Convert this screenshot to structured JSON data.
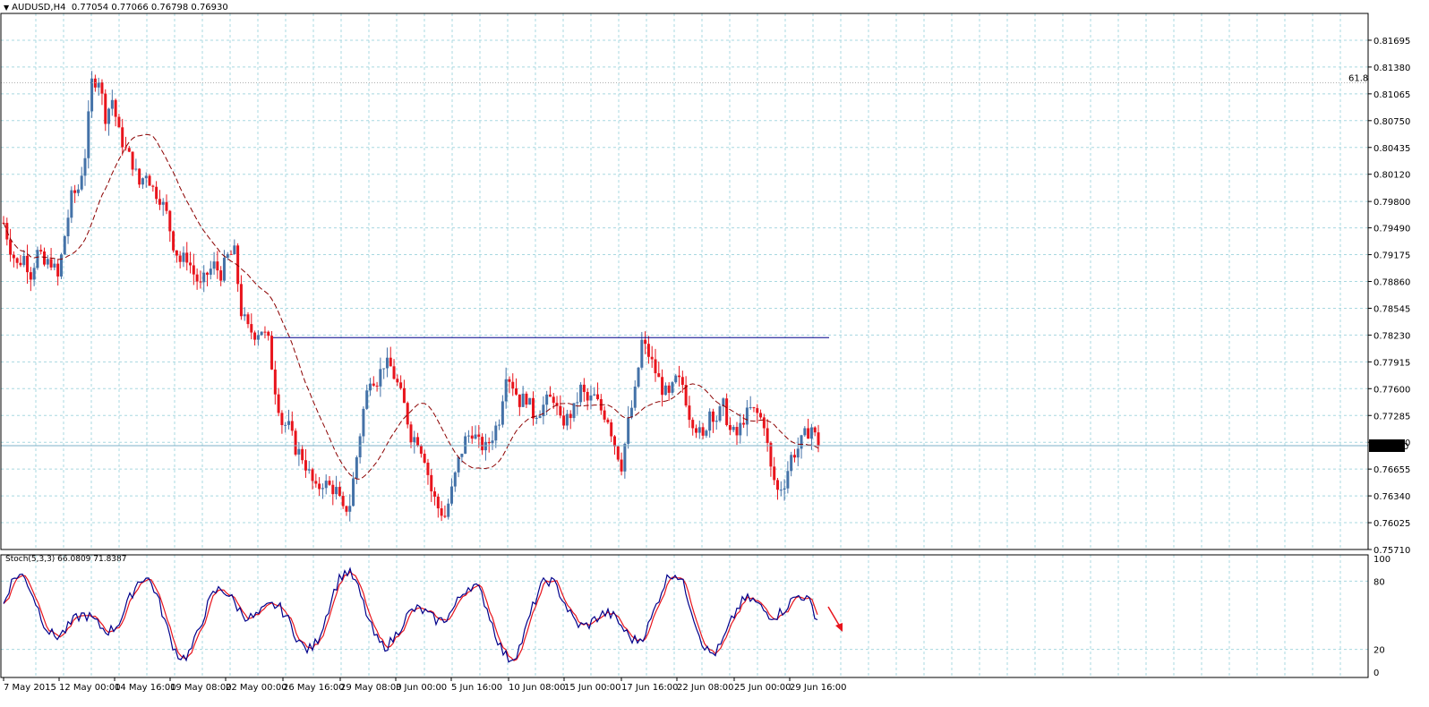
{
  "header": {
    "symbol": "AUDUSD,H4",
    "ohlc": "0.77054 0.77066 0.76798 0.76930"
  },
  "stoch_header": "Stoch(5,3,3) 66.0809 71.8387",
  "fib_label": "61.8",
  "current_price_label": "0.76930",
  "colors": {
    "bull": "#4472a8",
    "bear": "#e8141c",
    "ma": "#8b0000",
    "grid": "#a8d8e0",
    "stoch_main": "#00008b",
    "stoch_signal": "#e8141c",
    "resistance": "#00008b",
    "arrow": "#e8141c"
  },
  "chart_data": [
    {
      "type": "candlestick",
      "title": "",
      "ylim": [
        0.7571,
        0.8201
      ],
      "price_ticks": [
        "0.81695",
        "0.81380",
        "0.81065",
        "0.80750",
        "0.80435",
        "0.80120",
        "0.79800",
        "0.79490",
        "0.79175",
        "0.78860",
        "0.78545",
        "0.78230",
        "0.77915",
        "0.77600",
        "0.77285",
        "0.76970",
        "0.76655",
        "0.76340",
        "0.76025",
        "0.75710"
      ],
      "time_labels": [
        "7 May 2015",
        "12 May 00:00",
        "14 May 16:00",
        "19 May 08:00",
        "22 May 00:00",
        "26 May 16:00",
        "29 May 08:00",
        "3 Jun 00:00",
        "5 Jun 16:00",
        "10 Jun 08:00",
        "15 Jun 00:00",
        "17 Jun 16:00",
        "22 Jun 08:00",
        "25 Jun 00:00",
        "29 Jun 16:00"
      ],
      "close_path": [
        0.7955,
        0.7925,
        0.7905,
        0.7915,
        0.7895,
        0.792,
        0.7905,
        0.791,
        0.789,
        0.794,
        0.7985,
        0.7995,
        0.8035,
        0.812,
        0.8125,
        0.808,
        0.81,
        0.806,
        0.804,
        0.8025,
        0.8,
        0.8015,
        0.7995,
        0.7985,
        0.7965,
        0.793,
        0.791,
        0.7915,
        0.7895,
        0.788,
        0.7895,
        0.7905,
        0.7895,
        0.7915,
        0.792,
        0.785,
        0.783,
        0.7825,
        0.783,
        0.7815,
        0.776,
        0.772,
        0.7715,
        0.769,
        0.768,
        0.766,
        0.764,
        0.765,
        0.7645,
        0.764,
        0.7615,
        0.7625,
        0.768,
        0.7735,
        0.7775,
        0.777,
        0.779,
        0.7785,
        0.7765,
        0.774,
        0.7705,
        0.77,
        0.768,
        0.764,
        0.762,
        0.761,
        0.764,
        0.7675,
        0.77,
        0.771,
        0.7695,
        0.769,
        0.7705,
        0.7725,
        0.778,
        0.7765,
        0.7745,
        0.775,
        0.773,
        0.7735,
        0.7745,
        0.775,
        0.772,
        0.7725,
        0.7735,
        0.776,
        0.7745,
        0.775,
        0.7735,
        0.7725,
        0.7695,
        0.767,
        0.772,
        0.7755,
        0.7815,
        0.78,
        0.778,
        0.776,
        0.775,
        0.777,
        0.7765,
        0.773,
        0.7715,
        0.77,
        0.7735,
        0.7725,
        0.774,
        0.771,
        0.7705,
        0.7725,
        0.7735,
        0.773,
        0.772,
        0.7665,
        0.764,
        0.765,
        0.768,
        0.769,
        0.7705,
        0.7715,
        0.7693
      ],
      "resistance": 0.782,
      "fib_61_8": 0.81195,
      "current_price": 0.7693
    },
    {
      "type": "line",
      "title": "",
      "ylim": [
        0,
        100
      ],
      "yticks": [
        0,
        20,
        80,
        100
      ],
      "series": [],
      "note": ""
    }
  ]
}
